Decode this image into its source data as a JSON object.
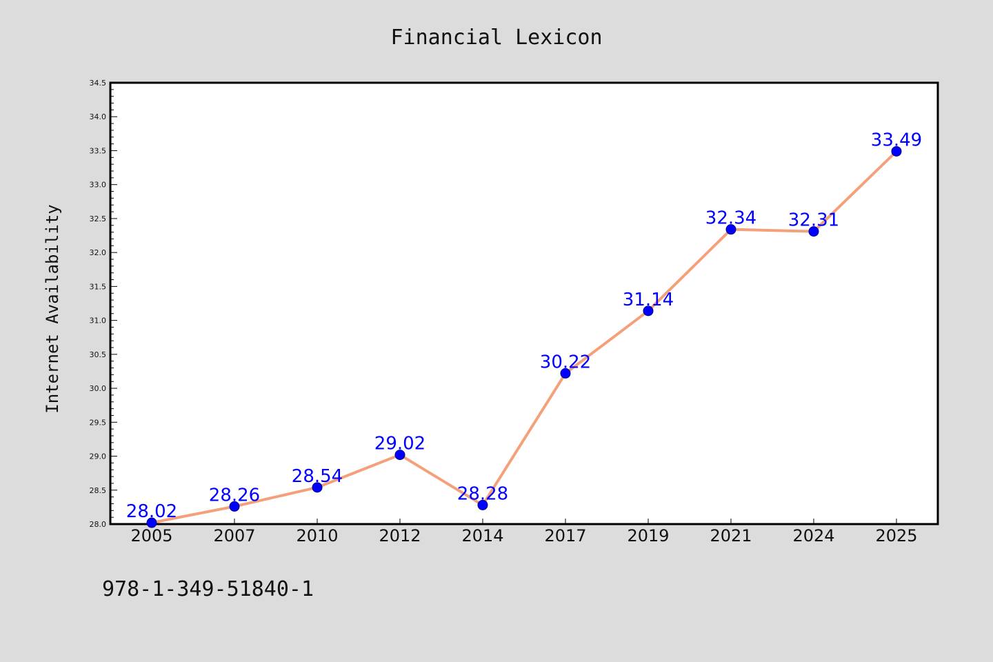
{
  "footer_text": "978-1-349-51840-1",
  "colors": {
    "background": "#dcdcdc",
    "plot_background": "#ffffff",
    "line": "#f4a07a",
    "marker": "#0000ff",
    "label": "#0000ff"
  },
  "chart_data": {
    "type": "line",
    "title": "Financial Lexicon",
    "xlabel": "",
    "ylabel": "Internet Availability",
    "categories": [
      "2005",
      "2007",
      "2010",
      "2012",
      "2014",
      "2017",
      "2019",
      "2021",
      "2024",
      "2025"
    ],
    "series": [
      {
        "values": [
          28.02,
          28.26,
          28.54,
          29.02,
          28.28,
          30.22,
          31.14,
          32.34,
          32.31,
          33.49
        ],
        "data_labels": [
          "28.02",
          "28.26",
          "28.54",
          "29.02",
          "28.28",
          "30.22",
          "31.14",
          "32.34",
          "32.31",
          "33.49"
        ]
      }
    ],
    "ylim": [
      28.0,
      34.5
    ],
    "yticks": [
      "28.0",
      "28.5",
      "29.0",
      "29.5",
      "30.0",
      "30.5",
      "31.0",
      "31.5",
      "32.0",
      "32.5",
      "33.0",
      "33.5",
      "34.0",
      "34.5"
    ],
    "grid": false,
    "legend": "none"
  }
}
